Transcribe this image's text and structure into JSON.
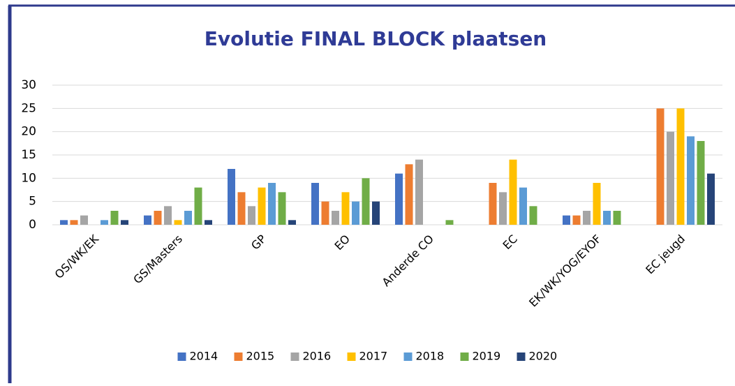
{
  "chart_data": {
    "type": "bar",
    "title": "Evolutie FINAL BLOCK plaatsen",
    "categories": [
      "OS/WK/EK",
      "GS/Masters",
      "GP",
      "EO",
      "Anderde CO",
      "EC",
      "EK/WK/YOG/EYOF",
      "EC jeugd"
    ],
    "series": [
      {
        "name": "2014",
        "color": "#4472c4",
        "values": [
          1,
          2,
          12,
          9,
          11,
          0,
          2,
          0
        ]
      },
      {
        "name": "2015",
        "color": "#ed7d31",
        "values": [
          1,
          3,
          7,
          5,
          13,
          9,
          2,
          25
        ]
      },
      {
        "name": "2016",
        "color": "#a5a5a5",
        "values": [
          2,
          4,
          4,
          3,
          14,
          7,
          3,
          20
        ]
      },
      {
        "name": "2017",
        "color": "#ffc000",
        "values": [
          0,
          1,
          8,
          7,
          0,
          14,
          9,
          25
        ]
      },
      {
        "name": "2018",
        "color": "#5b9bd5",
        "values": [
          1,
          3,
          9,
          5,
          0,
          8,
          3,
          19
        ]
      },
      {
        "name": "2019",
        "color": "#70ad47",
        "values": [
          3,
          8,
          7,
          10,
          1,
          4,
          3,
          18
        ]
      },
      {
        "name": "2020",
        "color": "#264478",
        "values": [
          1,
          1,
          1,
          5,
          0,
          0,
          0,
          11
        ]
      }
    ],
    "ylim": [
      0,
      30
    ],
    "yticks": [
      0,
      5,
      10,
      15,
      20,
      25,
      30
    ],
    "grid": true
  }
}
